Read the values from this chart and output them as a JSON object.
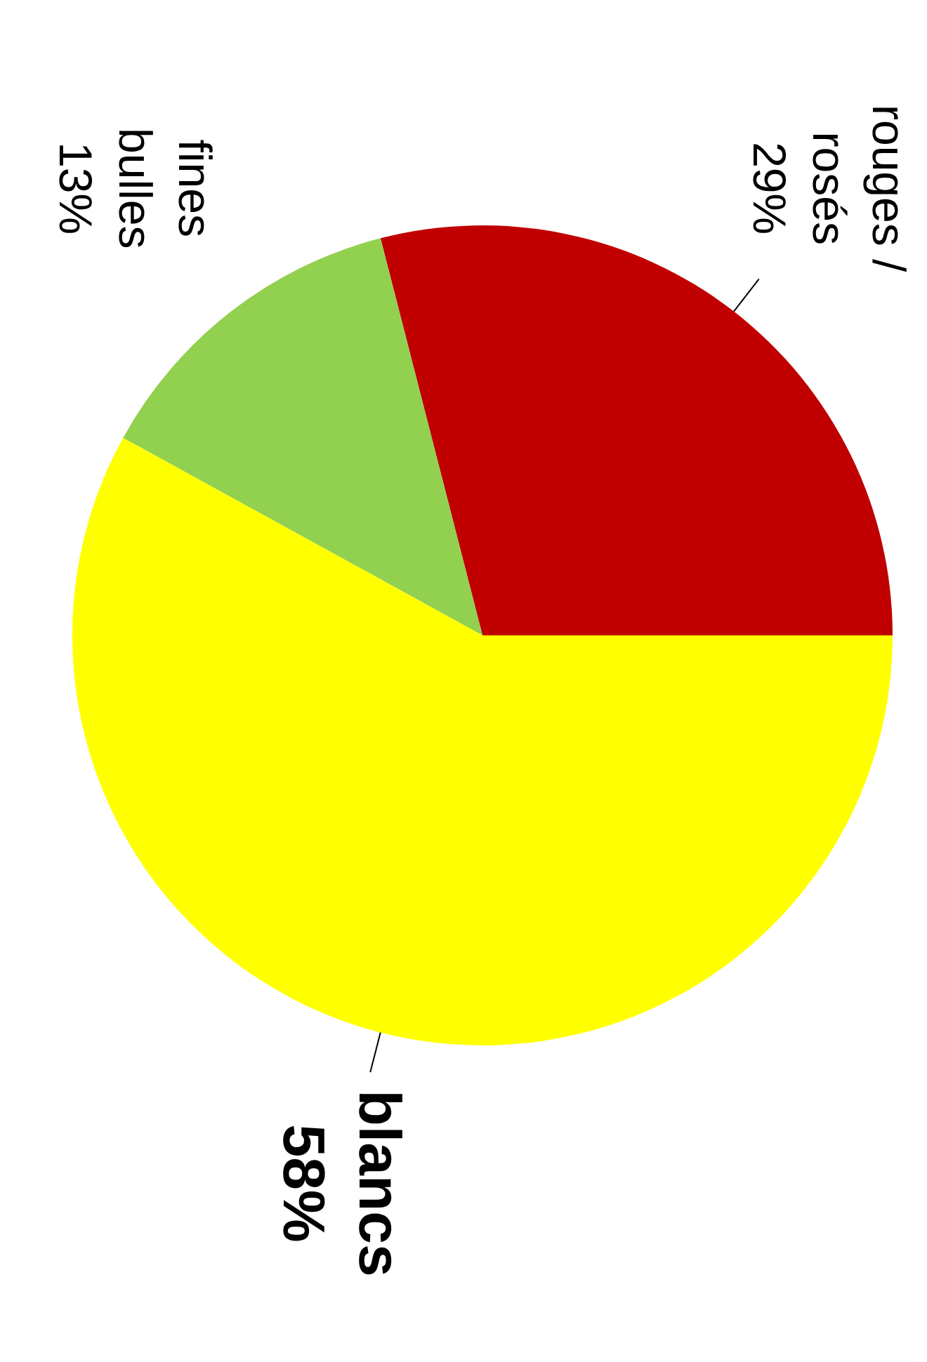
{
  "chart_data": {
    "type": "pie",
    "categories": [
      "rouges /\nrosés",
      "fines\nbulles",
      "blancs"
    ],
    "values": [
      29,
      13,
      58
    ],
    "value_labels": [
      "29%",
      "13%",
      "58%"
    ],
    "colors": [
      "#c00000",
      "#92d050",
      "#ffff00"
    ]
  }
}
